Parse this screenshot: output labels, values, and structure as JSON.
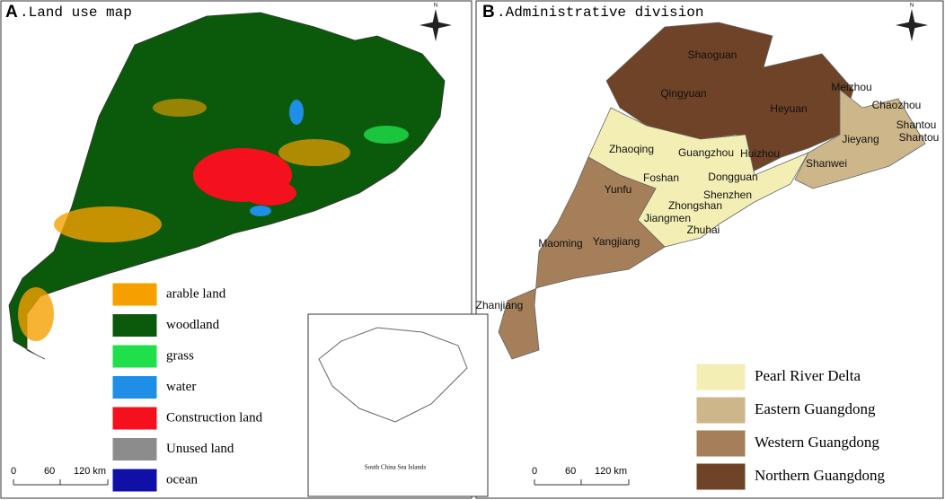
{
  "panels": [
    {
      "letter": "A",
      "title": ".Land use map",
      "north": "N",
      "legend": [
        {
          "label": "arable land",
          "color": "#f5a000"
        },
        {
          "label": "woodland",
          "color": "#0b5a0b"
        },
        {
          "label": "grass",
          "color": "#1fe04a"
        },
        {
          "label": "water",
          "color": "#1e8ee6"
        },
        {
          "label": "Construction land",
          "color": "#f5101e"
        },
        {
          "label": "Unused land",
          "color": "#8c8c8c"
        },
        {
          "label": "ocean",
          "color": "#1010a8"
        }
      ],
      "scale": [
        "0",
        "60",
        "120 km"
      ],
      "inset_label": "South China Sea Islands"
    },
    {
      "letter": "B",
      "title": ".Administrative division",
      "north": "N",
      "cities": [
        "Shaoguan",
        "Qingyuan",
        "Heyuan",
        "Meizhou",
        "Chaozhou",
        "Shantou",
        "Shantou",
        "Jieyang",
        "Shanwei",
        "Zhaoqing",
        "Guangzhou",
        "Huizhou",
        "Foshan",
        "Dongguan",
        "Shenzhen",
        "Yunfu",
        "Zhongshan",
        "Jiangmen",
        "Zhuhai",
        "Yangjiang",
        "Maoming",
        "Zhanjiang"
      ],
      "legend": [
        {
          "label": "Pearl River Delta",
          "color": "#f3eeb4"
        },
        {
          "label": "Eastern Guangdong",
          "color": "#cdb689"
        },
        {
          "label": "Western Guangdong",
          "color": "#a57f5a"
        },
        {
          "label": "Northern Guangdong",
          "color": "#6e4327"
        }
      ],
      "scale": [
        "0",
        "60",
        "120 km"
      ]
    }
  ]
}
